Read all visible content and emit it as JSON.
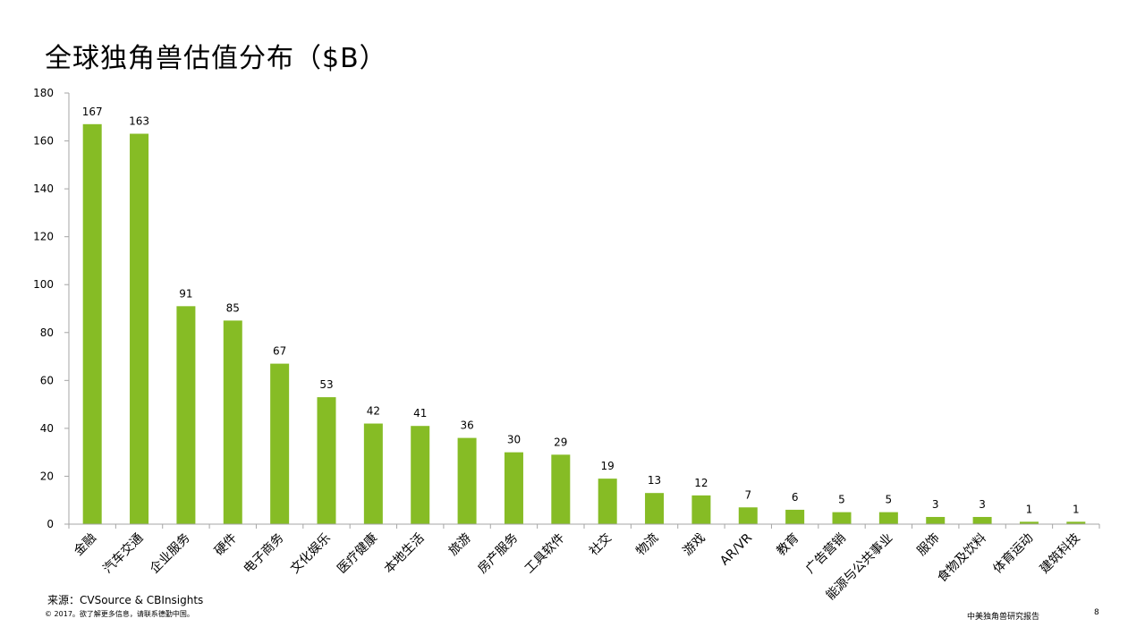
{
  "title": "全球独角兽估值分布（$B）",
  "footer": {
    "source": "来源：CVSource & CBInsights",
    "copyright": "© 2017。欲了解更多信息，请联系德勤中国。",
    "report_name": "中美独角兽研究报告",
    "page_number": "8"
  },
  "colors": {
    "bar": "#86bc25",
    "axis": "#a6a6a6",
    "text": "#000000"
  },
  "chart_data": {
    "type": "bar",
    "title": "全球独角兽估值分布（$B）",
    "xlabel": "",
    "ylabel": "",
    "ylim": [
      0,
      180
    ],
    "yticks": [
      0,
      20,
      40,
      60,
      80,
      100,
      120,
      140,
      160,
      180
    ],
    "grid": false,
    "legend": "none",
    "categories": [
      "金融",
      "汽车交通",
      "企业服务",
      "硬件",
      "电子商务",
      "文化娱乐",
      "医疗健康",
      "本地生活",
      "旅游",
      "房产服务",
      "工具软件",
      "社交",
      "物流",
      "游戏",
      "AR/VR",
      "教育",
      "广告营销",
      "能源与公共事业",
      "服饰",
      "食物及饮料",
      "体育运动",
      "建筑科技"
    ],
    "values": [
      167,
      163,
      91,
      85,
      67,
      53,
      42,
      41,
      36,
      30,
      29,
      19,
      13,
      12,
      7,
      6,
      5,
      5,
      3,
      3,
      1,
      1
    ]
  }
}
